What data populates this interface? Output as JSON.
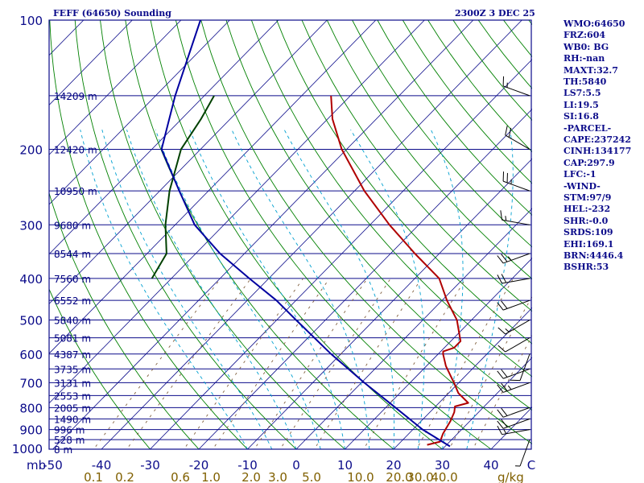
{
  "header": {
    "title": "FEFF (64650) Sounding",
    "valid_time": "2300Z  3 DEC 25"
  },
  "sidebar": {
    "lines": [
      "WMO:64650",
      "FRZ:604",
      "WB0: BG",
      "RH:-nan",
      "MAXT:32.7",
      "TH:5840",
      "LS7:5.5",
      "LI:19.5",
      "SI:16.8",
      "-PARCEL-",
      "CAPE:237242",
      "CINH:134177",
      "CAP:297.9",
      "LFC:-1",
      "-WIND-",
      "STM:97/9",
      "HEL:-232",
      "SHR:-0.0",
      "SRDS:109",
      "EHI:169.1",
      "BRN:4446.4",
      "BSHR:53"
    ]
  },
  "chart_data": {
    "type": "line",
    "title": "FEFF (64650) Sounding",
    "xlabel": "",
    "ylabel": "mb",
    "pressure_range": [
      1000,
      100
    ],
    "temperature_range": [
      -50,
      50
    ],
    "pressure_ticks": [
      "100",
      "200",
      "300",
      "400",
      "500",
      "600",
      "700",
      "800",
      "900",
      "1000"
    ],
    "pressure_tick_values": [
      100,
      200,
      300,
      400,
      500,
      600,
      700,
      800,
      900,
      1000
    ],
    "temperature_ticks": [
      "-50",
      "-40",
      "-30",
      "-20",
      "-10",
      "0",
      "10",
      "20",
      "30",
      "40",
      "C"
    ],
    "temperature_tick_values": [
      -50,
      -40,
      -30,
      -20,
      -10,
      0,
      10,
      20,
      30,
      40
    ],
    "temperature_unit": "C",
    "mixing_ratio_labels": [
      "0.1",
      "0.2",
      "0.6",
      "1.0",
      "2.0",
      "3.0",
      "5.0",
      "10.0",
      "20.0",
      "30.0",
      "40.0"
    ],
    "mixing_ratio_unit": "g/kg",
    "height_labels": [
      {
        "p": 150,
        "label": "14209 m"
      },
      {
        "p": 200,
        "label": "12420 m"
      },
      {
        "p": 250,
        "label": "10950 m"
      },
      {
        "p": 300,
        "label": "9680 m"
      },
      {
        "p": 350,
        "label": "8544 m"
      },
      {
        "p": 400,
        "label": "7560 m"
      },
      {
        "p": 450,
        "label": "6552 m"
      },
      {
        "p": 500,
        "label": "5840 m"
      },
      {
        "p": 550,
        "label": "5081 m"
      },
      {
        "p": 600,
        "label": "4387 m"
      },
      {
        "p": 650,
        "label": "3735 m"
      },
      {
        "p": 700,
        "label": "3131 m"
      },
      {
        "p": 750,
        "label": "2553 m"
      },
      {
        "p": 800,
        "label": "2005 m"
      },
      {
        "p": 850,
        "label": "1490 m"
      },
      {
        "p": 900,
        "label": "996 m"
      },
      {
        "p": 950,
        "label": "528 m"
      },
      {
        "p": 1000,
        "label": "8 m"
      }
    ],
    "series": [
      {
        "name": "",
        "role": "temperature",
        "color": "#b00000",
        "points": [
          {
            "p": 977,
            "t": 26.0
          },
          {
            "p": 960,
            "t": 28.0
          },
          {
            "p": 920,
            "t": 27.0
          },
          {
            "p": 860,
            "t": 26.0
          },
          {
            "p": 820,
            "t": 25.0
          },
          {
            "p": 795,
            "t": 24.0
          },
          {
            "p": 780,
            "t": 26.0
          },
          {
            "p": 740,
            "t": 22.0
          },
          {
            "p": 700,
            "t": 19.0
          },
          {
            "p": 640,
            "t": 14.0
          },
          {
            "p": 600,
            "t": 11.0
          },
          {
            "p": 592,
            "t": 10.5
          },
          {
            "p": 580,
            "t": 12.0
          },
          {
            "p": 560,
            "t": 12.0
          },
          {
            "p": 500,
            "t": 7.0
          },
          {
            "p": 450,
            "t": 1.0
          },
          {
            "p": 400,
            "t": -5.0
          },
          {
            "p": 350,
            "t": -15.0
          },
          {
            "p": 300,
            "t": -26.0
          },
          {
            "p": 250,
            "t": -38.0
          },
          {
            "p": 200,
            "t": -51.0
          },
          {
            "p": 170,
            "t": -59.0
          },
          {
            "p": 150,
            "t": -64.0
          }
        ]
      },
      {
        "name": "",
        "role": "dewpoint",
        "color": "#004000",
        "points": [
          {
            "p": 400,
            "t": -64.0
          },
          {
            "p": 350,
            "t": -66.0
          },
          {
            "p": 300,
            "t": -72.0
          },
          {
            "p": 250,
            "t": -78.0
          },
          {
            "p": 200,
            "t": -84.0
          },
          {
            "p": 170,
            "t": -86.0
          },
          {
            "p": 150,
            "t": -88.0
          }
        ]
      },
      {
        "name": "",
        "role": "parcel",
        "color": "#0000a0",
        "points": [
          {
            "p": 985,
            "t": 31.0
          },
          {
            "p": 900,
            "t": 22.0
          },
          {
            "p": 800,
            "t": 12.0
          },
          {
            "p": 700,
            "t": 0.6
          },
          {
            "p": 600,
            "t": -12.0
          },
          {
            "p": 500,
            "t": -26.0
          },
          {
            "p": 450,
            "t": -34.0
          },
          {
            "p": 400,
            "t": -44.0
          },
          {
            "p": 350,
            "t": -55.0
          },
          {
            "p": 300,
            "t": -66.0
          },
          {
            "p": 250,
            "t": -76.0
          },
          {
            "p": 200,
            "t": -88.0
          },
          {
            "p": 150,
            "t": -96.0
          },
          {
            "p": 100,
            "t": -106.0
          }
        ]
      }
    ],
    "wind_barbs": [
      {
        "p": 150,
        "dir": 290,
        "speed": 15
      },
      {
        "p": 200,
        "dir": 300,
        "speed": 20
      },
      {
        "p": 250,
        "dir": 290,
        "speed": 25
      },
      {
        "p": 300,
        "dir": 280,
        "speed": 15
      },
      {
        "p": 350,
        "dir": 250,
        "speed": 25
      },
      {
        "p": 400,
        "dir": 260,
        "speed": 20
      },
      {
        "p": 450,
        "dir": 250,
        "speed": 20
      },
      {
        "p": 500,
        "dir": 240,
        "speed": 15
      },
      {
        "p": 550,
        "dir": 240,
        "speed": 10
      },
      {
        "p": 600,
        "dir": 200,
        "speed": 10
      },
      {
        "p": 650,
        "dir": 250,
        "speed": 20
      },
      {
        "p": 700,
        "dir": 250,
        "speed": 25
      },
      {
        "p": 800,
        "dir": 250,
        "speed": 20
      },
      {
        "p": 850,
        "dir": 250,
        "speed": 20
      },
      {
        "p": 900,
        "dir": 260,
        "speed": 15
      },
      {
        "p": 950,
        "dir": 200,
        "speed": 5
      }
    ],
    "colors": {
      "isobars": "#0b0b8a",
      "isotherms": "#0b0b8a",
      "dry_adiabats": "#008000",
      "moist_adiabats": "#00a0d0",
      "mixing_ratio": "#806040",
      "axis_labels": "#0b0b8a",
      "mixing_labels": "#806000"
    }
  }
}
